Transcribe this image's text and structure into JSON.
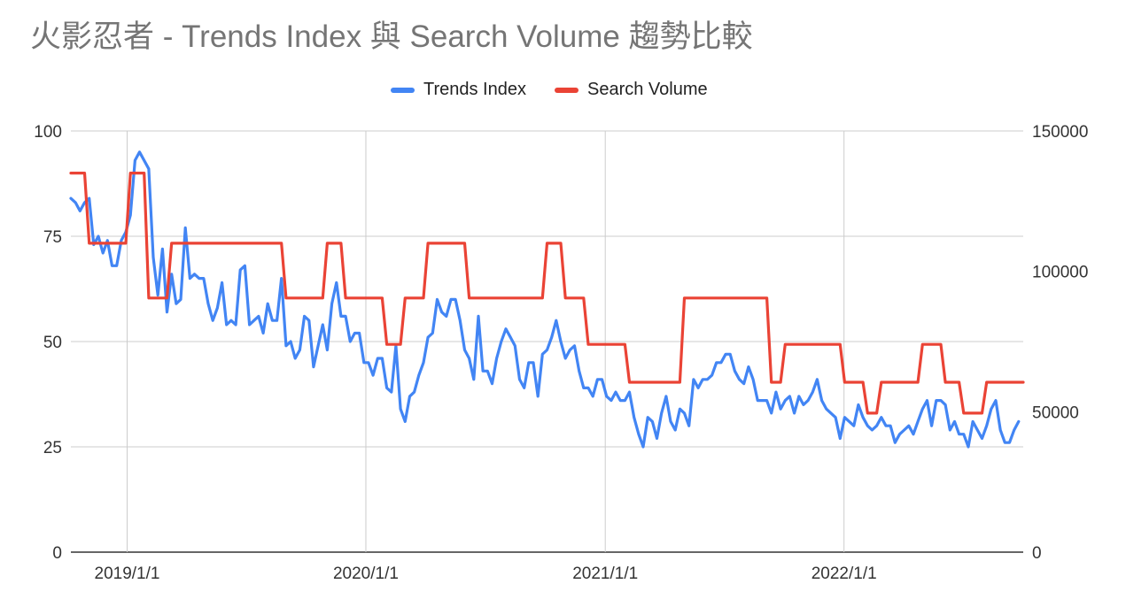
{
  "chart_data": {
    "type": "line",
    "title": "火影忍者 - Trends Index 與 Search Volume 趨勢比較",
    "legend_position": "top",
    "grid": true,
    "x_ticks": [
      "2019/1/1",
      "2020/1/1",
      "2021/1/1",
      "2022/1/1"
    ],
    "x_range": [
      "2018-10-07",
      "2022-10-02"
    ],
    "y_left": {
      "range": [
        0,
        100
      ],
      "ticks": [
        "0",
        "25",
        "50",
        "75",
        "100"
      ]
    },
    "y_right": {
      "range": [
        0,
        150000
      ],
      "ticks": [
        "0",
        "50000",
        "100000",
        "150000"
      ]
    },
    "series": [
      {
        "name": "Trends Index",
        "axis": "left",
        "color": "#4285f4",
        "points": [
          [
            "2018-10-07",
            84
          ],
          [
            "2018-10-14",
            83
          ],
          [
            "2018-10-21",
            81
          ],
          [
            "2018-10-28",
            83
          ],
          [
            "2018-11-04",
            84
          ],
          [
            "2018-11-11",
            73
          ],
          [
            "2018-11-18",
            75
          ],
          [
            "2018-11-25",
            71
          ],
          [
            "2018-12-02",
            74
          ],
          [
            "2018-12-09",
            68
          ],
          [
            "2018-12-16",
            68
          ],
          [
            "2018-12-23",
            74
          ],
          [
            "2018-12-30",
            76
          ],
          [
            "2019-01-06",
            80
          ],
          [
            "2019-01-13",
            93
          ],
          [
            "2019-01-20",
            95
          ],
          [
            "2019-01-27",
            93
          ],
          [
            "2019-02-03",
            91
          ],
          [
            "2019-02-10",
            70
          ],
          [
            "2019-02-17",
            61
          ],
          [
            "2019-02-24",
            72
          ],
          [
            "2019-03-03",
            57
          ],
          [
            "2019-03-10",
            66
          ],
          [
            "2019-03-17",
            59
          ],
          [
            "2019-03-24",
            60
          ],
          [
            "2019-03-31",
            77
          ],
          [
            "2019-04-07",
            65
          ],
          [
            "2019-04-14",
            66
          ],
          [
            "2019-04-21",
            65
          ],
          [
            "2019-04-28",
            65
          ],
          [
            "2019-05-05",
            59
          ],
          [
            "2019-05-12",
            55
          ],
          [
            "2019-05-19",
            58
          ],
          [
            "2019-05-26",
            64
          ],
          [
            "2019-06-02",
            54
          ],
          [
            "2019-06-09",
            55
          ],
          [
            "2019-06-16",
            54
          ],
          [
            "2019-06-23",
            67
          ],
          [
            "2019-06-30",
            68
          ],
          [
            "2019-07-07",
            54
          ],
          [
            "2019-07-14",
            55
          ],
          [
            "2019-07-21",
            56
          ],
          [
            "2019-07-28",
            52
          ],
          [
            "2019-08-04",
            59
          ],
          [
            "2019-08-11",
            55
          ],
          [
            "2019-08-18",
            55
          ],
          [
            "2019-08-25",
            65
          ],
          [
            "2019-09-01",
            49
          ],
          [
            "2019-09-08",
            50
          ],
          [
            "2019-09-15",
            46
          ],
          [
            "2019-09-22",
            48
          ],
          [
            "2019-09-29",
            56
          ],
          [
            "2019-10-06",
            55
          ],
          [
            "2019-10-13",
            44
          ],
          [
            "2019-10-20",
            49
          ],
          [
            "2019-10-27",
            54
          ],
          [
            "2019-11-03",
            48
          ],
          [
            "2019-11-10",
            59
          ],
          [
            "2019-11-17",
            64
          ],
          [
            "2019-11-24",
            56
          ],
          [
            "2019-12-01",
            56
          ],
          [
            "2019-12-08",
            50
          ],
          [
            "2019-12-15",
            52
          ],
          [
            "2019-12-22",
            52
          ],
          [
            "2019-12-29",
            45
          ],
          [
            "2020-01-05",
            45
          ],
          [
            "2020-01-12",
            42
          ],
          [
            "2020-01-19",
            46
          ],
          [
            "2020-01-26",
            46
          ],
          [
            "2020-02-02",
            39
          ],
          [
            "2020-02-09",
            38
          ],
          [
            "2020-02-16",
            49
          ],
          [
            "2020-02-23",
            34
          ],
          [
            "2020-03-01",
            31
          ],
          [
            "2020-03-08",
            37
          ],
          [
            "2020-03-15",
            38
          ],
          [
            "2020-03-22",
            42
          ],
          [
            "2020-03-29",
            45
          ],
          [
            "2020-04-05",
            51
          ],
          [
            "2020-04-12",
            52
          ],
          [
            "2020-04-19",
            60
          ],
          [
            "2020-04-26",
            57
          ],
          [
            "2020-05-03",
            56
          ],
          [
            "2020-05-10",
            60
          ],
          [
            "2020-05-17",
            60
          ],
          [
            "2020-05-24",
            55
          ],
          [
            "2020-05-31",
            48
          ],
          [
            "2020-06-07",
            46
          ],
          [
            "2020-06-14",
            41
          ],
          [
            "2020-06-21",
            56
          ],
          [
            "2020-06-28",
            43
          ],
          [
            "2020-07-05",
            43
          ],
          [
            "2020-07-12",
            40
          ],
          [
            "2020-07-19",
            46
          ],
          [
            "2020-07-26",
            50
          ],
          [
            "2020-08-02",
            53
          ],
          [
            "2020-08-09",
            51
          ],
          [
            "2020-08-16",
            49
          ],
          [
            "2020-08-23",
            41
          ],
          [
            "2020-08-30",
            39
          ],
          [
            "2020-09-06",
            45
          ],
          [
            "2020-09-13",
            45
          ],
          [
            "2020-09-20",
            37
          ],
          [
            "2020-09-27",
            47
          ],
          [
            "2020-10-04",
            48
          ],
          [
            "2020-10-11",
            51
          ],
          [
            "2020-10-18",
            55
          ],
          [
            "2020-10-25",
            50
          ],
          [
            "2020-11-01",
            46
          ],
          [
            "2020-11-08",
            48
          ],
          [
            "2020-11-15",
            49
          ],
          [
            "2020-11-22",
            43
          ],
          [
            "2020-11-29",
            39
          ],
          [
            "2020-12-06",
            39
          ],
          [
            "2020-12-13",
            37
          ],
          [
            "2020-12-20",
            41
          ],
          [
            "2020-12-27",
            41
          ],
          [
            "2021-01-03",
            37
          ],
          [
            "2021-01-10",
            36
          ],
          [
            "2021-01-17",
            38
          ],
          [
            "2021-01-24",
            36
          ],
          [
            "2021-01-31",
            36
          ],
          [
            "2021-02-07",
            38
          ],
          [
            "2021-02-14",
            32
          ],
          [
            "2021-02-21",
            28
          ],
          [
            "2021-02-28",
            25
          ],
          [
            "2021-03-07",
            32
          ],
          [
            "2021-03-14",
            31
          ],
          [
            "2021-03-21",
            27
          ],
          [
            "2021-03-28",
            33
          ],
          [
            "2021-04-04",
            37
          ],
          [
            "2021-04-11",
            31
          ],
          [
            "2021-04-18",
            29
          ],
          [
            "2021-04-25",
            34
          ],
          [
            "2021-05-02",
            33
          ],
          [
            "2021-05-09",
            30
          ],
          [
            "2021-05-16",
            41
          ],
          [
            "2021-05-23",
            39
          ],
          [
            "2021-05-30",
            41
          ],
          [
            "2021-06-06",
            41
          ],
          [
            "2021-06-13",
            42
          ],
          [
            "2021-06-20",
            45
          ],
          [
            "2021-06-27",
            45
          ],
          [
            "2021-07-04",
            47
          ],
          [
            "2021-07-11",
            47
          ],
          [
            "2021-07-18",
            43
          ],
          [
            "2021-07-25",
            41
          ],
          [
            "2021-08-01",
            40
          ],
          [
            "2021-08-08",
            44
          ],
          [
            "2021-08-15",
            41
          ],
          [
            "2021-08-22",
            36
          ],
          [
            "2021-08-29",
            36
          ],
          [
            "2021-09-05",
            36
          ],
          [
            "2021-09-12",
            33
          ],
          [
            "2021-09-19",
            38
          ],
          [
            "2021-09-26",
            34
          ],
          [
            "2021-10-03",
            36
          ],
          [
            "2021-10-10",
            37
          ],
          [
            "2021-10-17",
            33
          ],
          [
            "2021-10-24",
            37
          ],
          [
            "2021-10-31",
            35
          ],
          [
            "2021-11-07",
            36
          ],
          [
            "2021-11-14",
            38
          ],
          [
            "2021-11-21",
            41
          ],
          [
            "2021-11-28",
            36
          ],
          [
            "2021-12-05",
            34
          ],
          [
            "2021-12-12",
            33
          ],
          [
            "2021-12-19",
            32
          ],
          [
            "2021-12-26",
            27
          ],
          [
            "2022-01-02",
            32
          ],
          [
            "2022-01-09",
            31
          ],
          [
            "2022-01-16",
            30
          ],
          [
            "2022-01-23",
            35
          ],
          [
            "2022-01-30",
            32
          ],
          [
            "2022-02-06",
            30
          ],
          [
            "2022-02-13",
            29
          ],
          [
            "2022-02-20",
            30
          ],
          [
            "2022-02-27",
            32
          ],
          [
            "2022-03-06",
            30
          ],
          [
            "2022-03-13",
            30
          ],
          [
            "2022-03-20",
            26
          ],
          [
            "2022-03-27",
            28
          ],
          [
            "2022-04-03",
            29
          ],
          [
            "2022-04-10",
            30
          ],
          [
            "2022-04-17",
            28
          ],
          [
            "2022-04-24",
            31
          ],
          [
            "2022-05-01",
            34
          ],
          [
            "2022-05-08",
            36
          ],
          [
            "2022-05-15",
            30
          ],
          [
            "2022-05-22",
            36
          ],
          [
            "2022-05-29",
            36
          ],
          [
            "2022-06-05",
            35
          ],
          [
            "2022-06-12",
            29
          ],
          [
            "2022-06-19",
            31
          ],
          [
            "2022-06-26",
            28
          ],
          [
            "2022-07-03",
            28
          ],
          [
            "2022-07-10",
            25
          ],
          [
            "2022-07-17",
            31
          ],
          [
            "2022-07-24",
            29
          ],
          [
            "2022-07-31",
            27
          ],
          [
            "2022-08-07",
            30
          ],
          [
            "2022-08-14",
            34
          ],
          [
            "2022-08-21",
            36
          ],
          [
            "2022-08-28",
            29
          ],
          [
            "2022-09-04",
            26
          ],
          [
            "2022-09-11",
            26
          ],
          [
            "2022-09-18",
            29
          ],
          [
            "2022-09-25",
            31
          ]
        ]
      },
      {
        "name": "Search Volume",
        "axis": "right",
        "color": "#ea4335",
        "points": [
          [
            "2018-10-07",
            135000
          ],
          [
            "2018-10-28",
            135000
          ],
          [
            "2018-11-04",
            110000
          ],
          [
            "2018-12-30",
            110000
          ],
          [
            "2019-01-06",
            135000
          ],
          [
            "2019-01-27",
            135000
          ],
          [
            "2019-02-03",
            90500
          ],
          [
            "2019-03-03",
            90500
          ],
          [
            "2019-03-10",
            110000
          ],
          [
            "2019-08-25",
            110000
          ],
          [
            "2019-09-01",
            90500
          ],
          [
            "2019-10-27",
            90500
          ],
          [
            "2019-11-03",
            110000
          ],
          [
            "2019-11-24",
            110000
          ],
          [
            "2019-12-01",
            90500
          ],
          [
            "2020-01-26",
            90500
          ],
          [
            "2020-02-02",
            74000
          ],
          [
            "2020-02-23",
            74000
          ],
          [
            "2020-03-01",
            90500
          ],
          [
            "2020-03-29",
            90500
          ],
          [
            "2020-04-05",
            110000
          ],
          [
            "2020-05-31",
            110000
          ],
          [
            "2020-06-07",
            90500
          ],
          [
            "2020-09-27",
            90500
          ],
          [
            "2020-10-04",
            110000
          ],
          [
            "2020-10-25",
            110000
          ],
          [
            "2020-11-01",
            90500
          ],
          [
            "2020-11-29",
            90500
          ],
          [
            "2020-12-06",
            74000
          ],
          [
            "2021-01-31",
            74000
          ],
          [
            "2021-02-07",
            60500
          ],
          [
            "2021-04-25",
            60500
          ],
          [
            "2021-05-02",
            90500
          ],
          [
            "2021-09-05",
            90500
          ],
          [
            "2021-09-12",
            60500
          ],
          [
            "2021-09-26",
            60500
          ],
          [
            "2021-10-03",
            74000
          ],
          [
            "2021-12-26",
            74000
          ],
          [
            "2022-01-02",
            60500
          ],
          [
            "2022-01-30",
            60500
          ],
          [
            "2022-02-06",
            49500
          ],
          [
            "2022-02-20",
            49500
          ],
          [
            "2022-02-27",
            60500
          ],
          [
            "2022-04-24",
            60500
          ],
          [
            "2022-05-01",
            74000
          ],
          [
            "2022-05-29",
            74000
          ],
          [
            "2022-06-05",
            60500
          ],
          [
            "2022-06-26",
            60500
          ],
          [
            "2022-07-03",
            49500
          ],
          [
            "2022-07-31",
            49500
          ],
          [
            "2022-08-07",
            60500
          ],
          [
            "2022-10-02",
            60500
          ]
        ]
      }
    ]
  }
}
